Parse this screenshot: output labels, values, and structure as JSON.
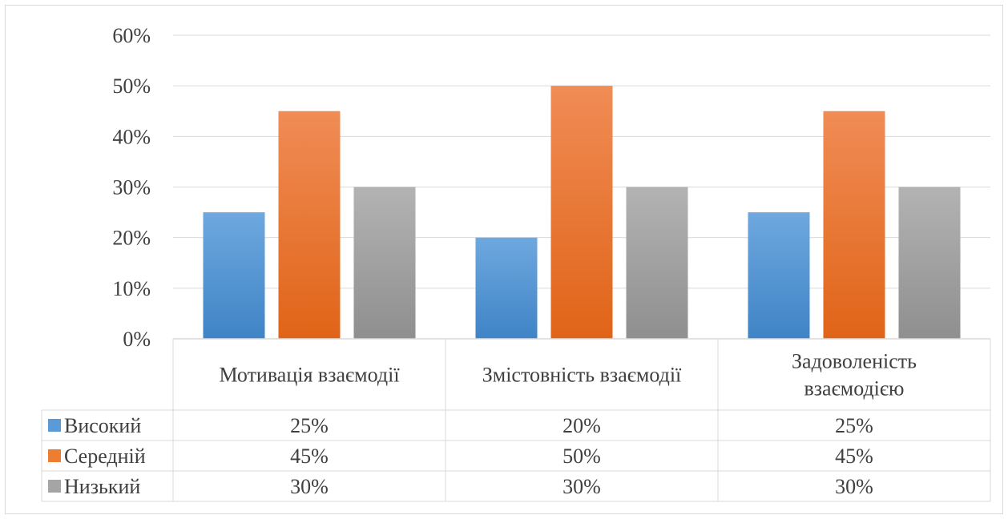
{
  "chart_data": {
    "type": "bar",
    "categories": [
      [
        "Мотивація взаємодії"
      ],
      [
        "Змістовність взаємодії"
      ],
      [
        "Задоволеність",
        "взаємодією"
      ]
    ],
    "series": [
      {
        "name": "Високий",
        "values": [
          25,
          20,
          25
        ],
        "color": "#5b9bd5"
      },
      {
        "name": "Середній",
        "values": [
          45,
          50,
          45
        ],
        "color": "#ed7d31"
      },
      {
        "name": "Низький",
        "values": [
          30,
          30,
          30
        ],
        "color": "#a5a5a5"
      }
    ],
    "value_format": "percent",
    "ylim": [
      0,
      60
    ],
    "yticks": [
      "0%",
      "10%",
      "20%",
      "30%",
      "40%",
      "50%",
      "60%"
    ],
    "grid": true,
    "legend": "data-table",
    "table_values": [
      [
        "25%",
        "20%",
        "25%"
      ],
      [
        "45%",
        "50%",
        "45%"
      ],
      [
        "30%",
        "30%",
        "30%"
      ]
    ]
  }
}
